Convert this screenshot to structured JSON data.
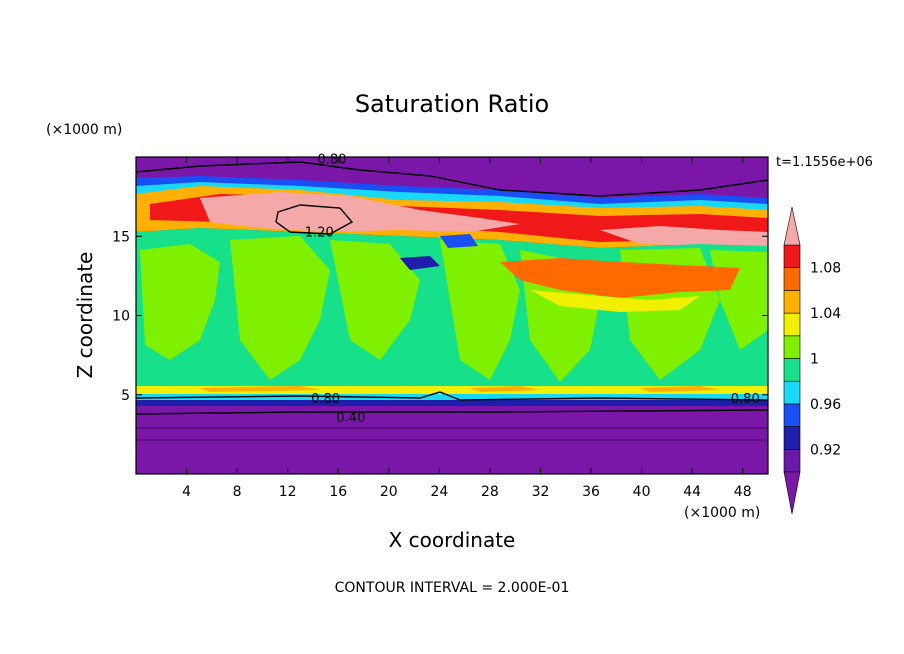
{
  "chart_data": {
    "type": "heatmap",
    "title": "Saturation Ratio",
    "xlabel": "X coordinate",
    "ylabel": "Z coordinate",
    "x_unit": "(×1000 m)",
    "y_unit": "(×1000 m)",
    "time_label": "t=1.1556e+06",
    "footer": "CONTOUR INTERVAL = 2.000E-01",
    "xlim": [
      0,
      50
    ],
    "ylim": [
      0,
      20
    ],
    "x_ticks": [
      4,
      8,
      12,
      16,
      20,
      24,
      28,
      32,
      36,
      40,
      44,
      48
    ],
    "y_ticks": [
      5,
      10,
      15
    ],
    "colorbar": {
      "levels": [
        0.9,
        0.92,
        0.94,
        0.96,
        0.98,
        1.0,
        1.02,
        1.04,
        1.06,
        1.08,
        1.1
      ],
      "labeled": [
        {
          "value": 0.92,
          "label": "0.92"
        },
        {
          "value": 0.96,
          "label": "0.96"
        },
        {
          "value": 1.0,
          "label": "1"
        },
        {
          "value": 1.04,
          "label": "1.04"
        },
        {
          "value": 1.08,
          "label": "1.08"
        }
      ],
      "colors": [
        "#6a1aa8",
        "#1e1eaa",
        "#1a4ff5",
        "#18d8f8",
        "#16e08a",
        "#7ef000",
        "#f0f000",
        "#ffb000",
        "#ff6a00",
        "#f01818"
      ],
      "under_color": "#7a16a8",
      "over_color": "#f4a8a8"
    },
    "contour_labels": [
      {
        "text": "0.80",
        "x": 15.5,
        "z": 19.9
      },
      {
        "text": "1.20",
        "x": 14.5,
        "z": 15.3
      },
      {
        "text": "0.80",
        "x": 15.0,
        "z": 4.8
      },
      {
        "text": "0.40",
        "x": 17.0,
        "z": 3.6
      },
      {
        "text": "0.80",
        "x": 48.2,
        "z": 4.8
      }
    ]
  }
}
